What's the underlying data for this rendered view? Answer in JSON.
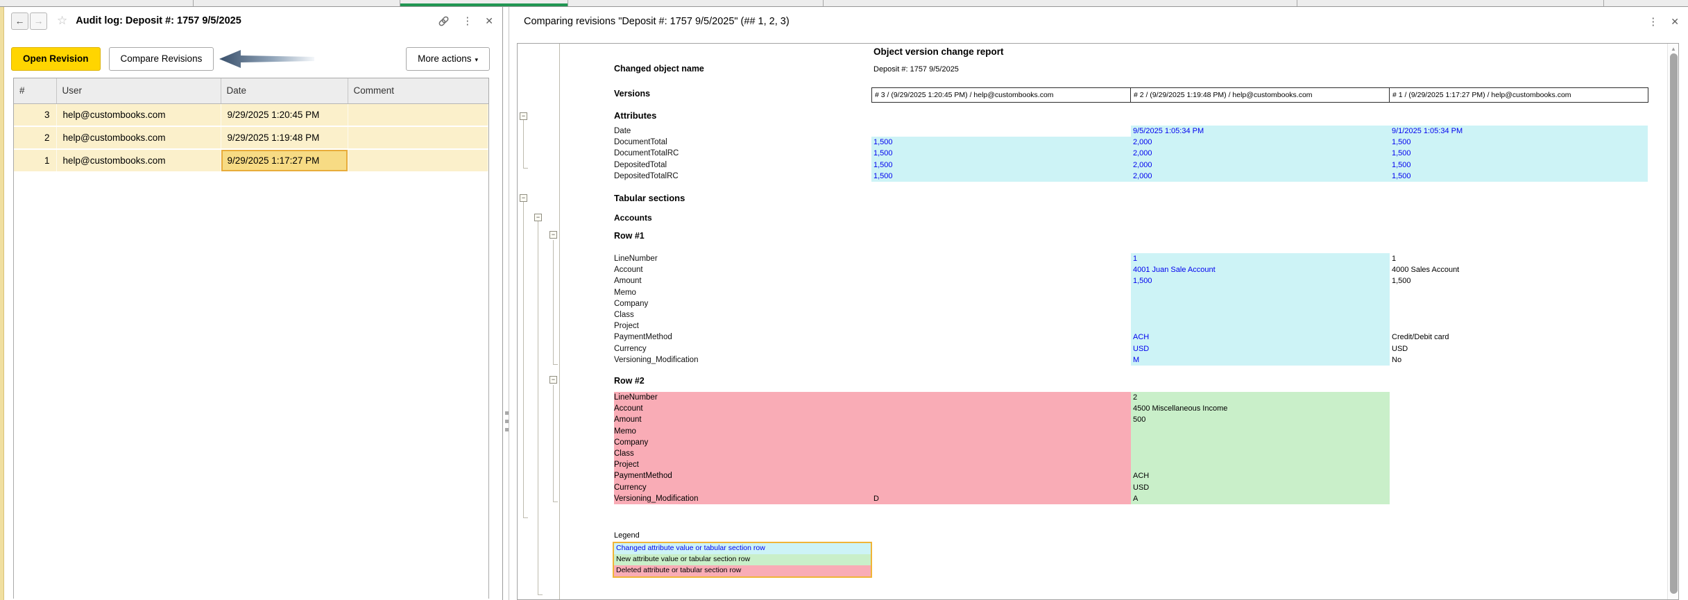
{
  "left_panel": {
    "title": "Audit log: Deposit #: 1757 9/5/2025",
    "icons": {
      "back": "←",
      "forward": "→",
      "star": "☆",
      "menu": "⋮",
      "close": "✕",
      "more_caret": "▾",
      "scroll_up": "▲"
    },
    "toolbar": {
      "open_revision": "Open Revision",
      "compare_revisions": "Compare Revisions",
      "more_actions": "More actions"
    },
    "table": {
      "columns": [
        "#",
        "User",
        "Date",
        "Comment"
      ],
      "rows": [
        {
          "num": "3",
          "user": "help@custombooks.com",
          "date": "9/29/2025 1:20:45 PM",
          "comment": ""
        },
        {
          "num": "2",
          "user": "help@custombooks.com",
          "date": "9/29/2025 1:19:48 PM",
          "comment": ""
        },
        {
          "num": "1",
          "user": "help@custombooks.com",
          "date": "9/29/2025 1:17:27 PM",
          "comment": ""
        }
      ],
      "selected": {
        "row": 2,
        "col": "date"
      }
    }
  },
  "right_panel": {
    "title": "Comparing revisions \"Deposit #: 1757 9/5/2025\" (## 1, 2, 3)",
    "report": {
      "title": "Object version change report",
      "changed_object_label": "Changed object name",
      "changed_object_value": "Deposit #: 1757 9/5/2025",
      "versions_label": "Versions",
      "versions": [
        "# 3 / (9/29/2025 1:20:45 PM) / help@custombooks.com",
        "# 2 / (9/29/2025 1:19:48 PM) / help@custombooks.com",
        "# 1 / (9/29/2025 1:17:27 PM) / help@custombooks.com"
      ],
      "attributes": {
        "heading": "Attributes",
        "rows": [
          {
            "label": "Date",
            "cells": [
              {
                "t": "",
                "s": ""
              },
              {
                "t": "9/5/2025 1:05:34 PM",
                "s": "chg"
              },
              {
                "t": "9/1/2025 1:05:34 PM",
                "s": "chg"
              }
            ]
          },
          {
            "label": "DocumentTotal",
            "cells": [
              {
                "t": "1,500",
                "s": "chg"
              },
              {
                "t": "2,000",
                "s": "chg"
              },
              {
                "t": "1,500",
                "s": "chg"
              }
            ]
          },
          {
            "label": "DocumentTotalRC",
            "cells": [
              {
                "t": "1,500",
                "s": "chg"
              },
              {
                "t": "2,000",
                "s": "chg"
              },
              {
                "t": "1,500",
                "s": "chg"
              }
            ]
          },
          {
            "label": "DepositedTotal",
            "cells": [
              {
                "t": "1,500",
                "s": "chg"
              },
              {
                "t": "2,000",
                "s": "chg"
              },
              {
                "t": "1,500",
                "s": "chg"
              }
            ]
          },
          {
            "label": "DepositedTotalRC",
            "cells": [
              {
                "t": "1,500",
                "s": "chg"
              },
              {
                "t": "2,000",
                "s": "chg"
              },
              {
                "t": "1,500",
                "s": "chg"
              }
            ]
          }
        ]
      },
      "tabular_heading": "Tabular sections",
      "accounts_heading": "Accounts",
      "row1": {
        "heading": "Row #1",
        "rows": [
          {
            "label": "LineNumber",
            "cells": [
              {
                "t": "",
                "s": ""
              },
              {
                "t": "1",
                "s": "chg"
              },
              {
                "t": "1",
                "s": ""
              }
            ]
          },
          {
            "label": "Account",
            "cells": [
              {
                "t": "",
                "s": ""
              },
              {
                "t": "4001 Juan Sale Account",
                "s": "chg"
              },
              {
                "t": "4000 Sales Account",
                "s": ""
              }
            ]
          },
          {
            "label": "Amount",
            "cells": [
              {
                "t": "",
                "s": ""
              },
              {
                "t": "1,500",
                "s": "chg"
              },
              {
                "t": "1,500",
                "s": ""
              }
            ]
          },
          {
            "label": "Memo",
            "cells": [
              {
                "t": "",
                "s": ""
              },
              {
                "t": "",
                "s": "chg"
              },
              {
                "t": "",
                "s": ""
              }
            ]
          },
          {
            "label": "Company",
            "cells": [
              {
                "t": "",
                "s": ""
              },
              {
                "t": "",
                "s": "chg"
              },
              {
                "t": "",
                "s": ""
              }
            ]
          },
          {
            "label": "Class",
            "cells": [
              {
                "t": "",
                "s": ""
              },
              {
                "t": "",
                "s": "chg"
              },
              {
                "t": "",
                "s": ""
              }
            ]
          },
          {
            "label": "Project",
            "cells": [
              {
                "t": "",
                "s": ""
              },
              {
                "t": "",
                "s": "chg"
              },
              {
                "t": "",
                "s": ""
              }
            ]
          },
          {
            "label": "PaymentMethod",
            "cells": [
              {
                "t": "",
                "s": ""
              },
              {
                "t": "ACH",
                "s": "chg"
              },
              {
                "t": "Credit/Debit card",
                "s": ""
              }
            ]
          },
          {
            "label": "Currency",
            "cells": [
              {
                "t": "",
                "s": ""
              },
              {
                "t": "USD",
                "s": "chg"
              },
              {
                "t": "USD",
                "s": ""
              }
            ]
          },
          {
            "label": "Versioning_Modification",
            "cells": [
              {
                "t": "",
                "s": ""
              },
              {
                "t": "M",
                "s": "chg"
              },
              {
                "t": "No",
                "s": ""
              }
            ]
          }
        ]
      },
      "row2": {
        "heading": "Row #2",
        "rows": [
          {
            "label": "LineNumber",
            "ls": "del",
            "cells": [
              {
                "t": "",
                "s": "del"
              },
              {
                "t": "2",
                "s": "new"
              },
              {
                "t": "",
                "s": ""
              }
            ]
          },
          {
            "label": "Account",
            "ls": "del",
            "cells": [
              {
                "t": "",
                "s": "del"
              },
              {
                "t": "4500 Miscellaneous Income",
                "s": "new"
              },
              {
                "t": "",
                "s": ""
              }
            ]
          },
          {
            "label": "Amount",
            "ls": "del",
            "cells": [
              {
                "t": "",
                "s": "del"
              },
              {
                "t": "500",
                "s": "new"
              },
              {
                "t": "",
                "s": ""
              }
            ]
          },
          {
            "label": "Memo",
            "ls": "del",
            "cells": [
              {
                "t": "",
                "s": "del"
              },
              {
                "t": "",
                "s": "new"
              },
              {
                "t": "",
                "s": ""
              }
            ]
          },
          {
            "label": "Company",
            "ls": "del",
            "cells": [
              {
                "t": "",
                "s": "del"
              },
              {
                "t": "",
                "s": "new"
              },
              {
                "t": "",
                "s": ""
              }
            ]
          },
          {
            "label": "Class",
            "ls": "del",
            "cells": [
              {
                "t": "",
                "s": "del"
              },
              {
                "t": "",
                "s": "new"
              },
              {
                "t": "",
                "s": ""
              }
            ]
          },
          {
            "label": "Project",
            "ls": "del",
            "cells": [
              {
                "t": "",
                "s": "del"
              },
              {
                "t": "",
                "s": "new"
              },
              {
                "t": "",
                "s": ""
              }
            ]
          },
          {
            "label": "PaymentMethod",
            "ls": "del",
            "cells": [
              {
                "t": "",
                "s": "del"
              },
              {
                "t": "ACH",
                "s": "new"
              },
              {
                "t": "",
                "s": ""
              }
            ]
          },
          {
            "label": "Currency",
            "ls": "del",
            "cells": [
              {
                "t": "",
                "s": "del"
              },
              {
                "t": "USD",
                "s": "new"
              },
              {
                "t": "",
                "s": ""
              }
            ]
          },
          {
            "label": "Versioning_Modification",
            "ls": "del",
            "cells": [
              {
                "t": "D",
                "s": "del"
              },
              {
                "t": "A",
                "s": "new"
              },
              {
                "t": "",
                "s": ""
              }
            ]
          }
        ]
      },
      "legend": {
        "label": "Legend",
        "items": [
          {
            "text": "Changed attribute value or tabular section row",
            "type": "changed"
          },
          {
            "text": "New attribute value or tabular section row",
            "type": "new"
          },
          {
            "text": "Deleted attribute or tabular section row",
            "type": "deleted"
          }
        ]
      }
    }
  },
  "colors": {
    "changed_bg": "#CDF3F6",
    "new_bg": "#C9EFC9",
    "deleted_bg": "#F9ACB6",
    "changed_text": "#0000EE",
    "accent_yellow": "#FFD500",
    "row_yellow": "#FBF0CB",
    "selected_cell_bg": "#F7DB84",
    "selected_cell_border": "#E8AC3A",
    "legend_border": "#F0B437",
    "active_tab_green": "#219653",
    "side_accent": "#F0DFA0"
  }
}
